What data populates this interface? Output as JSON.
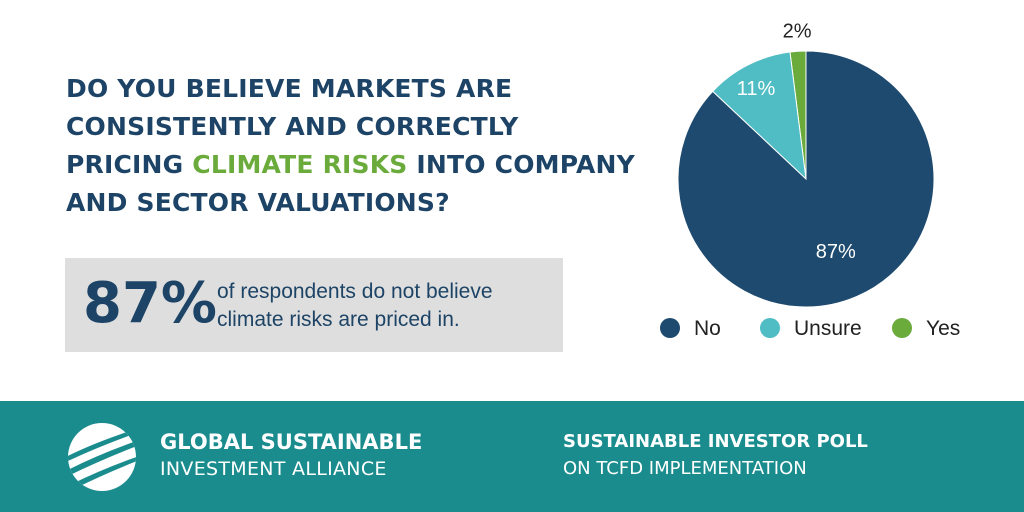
{
  "question": {
    "part1": "Do you believe markets are consistently and correctly pricing",
    "highlight": "Climate Risks",
    "part2": "into company and sector valuations?"
  },
  "stat": {
    "percent": "87%",
    "line1": "of respondents do not believe",
    "line2": "climate risks are priced in."
  },
  "chart_data": {
    "type": "pie",
    "title": "",
    "slices": [
      {
        "label": "No",
        "value": 87,
        "display": "87%",
        "color": "#1d4a6e"
      },
      {
        "label": "Unsure",
        "value": 11,
        "display": "11%",
        "color": "#4fbdc3"
      },
      {
        "label": "Yes",
        "value": 2,
        "display": "2%",
        "color": "#6aab3c"
      }
    ],
    "legend_position": "bottom"
  },
  "footer": {
    "org_line1": "GLOBAL SUSTAINABLE",
    "org_line2": "INVESTMENT ALLIANCE",
    "poll_line1": "SUSTAINABLE INVESTOR POLL",
    "poll_line2": "ON TCFD IMPLEMENTATION",
    "bg_color": "#1b8c8e"
  }
}
